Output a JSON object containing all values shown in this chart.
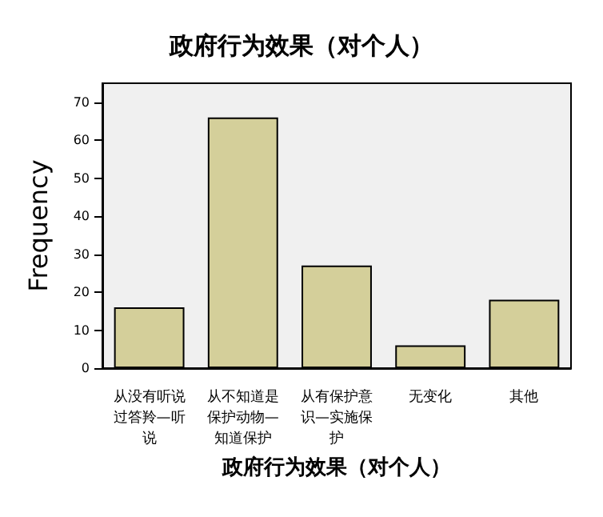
{
  "chart_data": {
    "type": "bar",
    "title": "政府行为效果（对个人）",
    "xlabel": "政府行为效果（对个人）",
    "ylabel": "Frequency",
    "categories": [
      "从没有听说过答羚—听说",
      "从不知道是保护动物—知道保护",
      "从有保护意识—实施保护",
      "无变化",
      "其他"
    ],
    "values": [
      16,
      66,
      27,
      6,
      18
    ],
    "color": "#d4cf9a",
    "ylim": [
      0,
      75
    ],
    "yticks": [
      0,
      10,
      20,
      30,
      40,
      50,
      60,
      70
    ],
    "grid": false
  }
}
